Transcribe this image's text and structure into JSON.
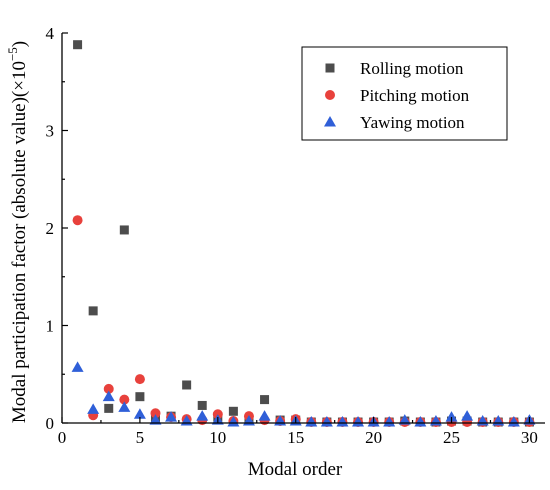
{
  "chart_data": {
    "type": "scatter",
    "xlabel": "Modal order",
    "ylabel": "Modal participation factor (absolute value)(×10",
    "ylabel_sup": "−5",
    "ylabel_close": ")",
    "xlim": [
      0,
      31
    ],
    "ylim": [
      0,
      4
    ],
    "x_ticks": [
      0,
      5,
      10,
      15,
      20,
      25,
      30
    ],
    "y_ticks": [
      0,
      1,
      2,
      3,
      4
    ],
    "grid": false,
    "legend_position": "top-right",
    "series": [
      {
        "name": "Rolling motion",
        "marker": "square",
        "color": "#4d4d4d",
        "points": [
          [
            1,
            3.88
          ],
          [
            2,
            1.15
          ],
          [
            3,
            0.15
          ],
          [
            4,
            1.98
          ],
          [
            5,
            0.27
          ],
          [
            6,
            0.05
          ],
          [
            7,
            0.07
          ],
          [
            8,
            0.39
          ],
          [
            9,
            0.18
          ],
          [
            10,
            0.06
          ],
          [
            11,
            0.12
          ],
          [
            12,
            0.04
          ],
          [
            13,
            0.24
          ],
          [
            14,
            0.03
          ],
          [
            15,
            0.03
          ],
          [
            16,
            0.01
          ],
          [
            17,
            0.01
          ],
          [
            18,
            0.01
          ],
          [
            19,
            0.01
          ],
          [
            20,
            0.01
          ],
          [
            21,
            0.01
          ],
          [
            22,
            0.02
          ],
          [
            23,
            0.01
          ],
          [
            24,
            0.01
          ],
          [
            25,
            0.02
          ],
          [
            26,
            0.02
          ],
          [
            27,
            0.01
          ],
          [
            28,
            0.01
          ],
          [
            29,
            0.01
          ],
          [
            30,
            0.01
          ]
        ]
      },
      {
        "name": "Pitching motion",
        "marker": "circle",
        "color": "#e8413c",
        "points": [
          [
            1,
            2.08
          ],
          [
            2,
            0.08
          ],
          [
            3,
            0.35
          ],
          [
            4,
            0.24
          ],
          [
            5,
            0.45
          ],
          [
            6,
            0.1
          ],
          [
            7,
            0.06
          ],
          [
            8,
            0.04
          ],
          [
            9,
            0.03
          ],
          [
            10,
            0.09
          ],
          [
            11,
            0.02
          ],
          [
            12,
            0.07
          ],
          [
            13,
            0.03
          ],
          [
            14,
            0.02
          ],
          [
            15,
            0.04
          ],
          [
            16,
            0.01
          ],
          [
            17,
            0.01
          ],
          [
            18,
            0.01
          ],
          [
            19,
            0.01
          ],
          [
            20,
            0.01
          ],
          [
            21,
            0.01
          ],
          [
            22,
            0.01
          ],
          [
            23,
            0.01
          ],
          [
            24,
            0.01
          ],
          [
            25,
            0.01
          ],
          [
            26,
            0.01
          ],
          [
            27,
            0.01
          ],
          [
            28,
            0.01
          ],
          [
            29,
            0.01
          ],
          [
            30,
            0.01
          ]
        ]
      },
      {
        "name": "Yawing motion",
        "marker": "triangle",
        "color": "#2f5fd8",
        "points": [
          [
            1,
            0.57
          ],
          [
            2,
            0.14
          ],
          [
            3,
            0.27
          ],
          [
            4,
            0.16
          ],
          [
            5,
            0.09
          ],
          [
            6,
            0.03
          ],
          [
            7,
            0.06
          ],
          [
            8,
            0.02
          ],
          [
            9,
            0.07
          ],
          [
            10,
            0.03
          ],
          [
            11,
            0.01
          ],
          [
            12,
            0.02
          ],
          [
            13,
            0.07
          ],
          [
            14,
            0.02
          ],
          [
            15,
            0.02
          ],
          [
            16,
            0.01
          ],
          [
            17,
            0.01
          ],
          [
            18,
            0.01
          ],
          [
            19,
            0.01
          ],
          [
            20,
            0.01
          ],
          [
            21,
            0.01
          ],
          [
            22,
            0.03
          ],
          [
            23,
            0.01
          ],
          [
            24,
            0.02
          ],
          [
            25,
            0.06
          ],
          [
            26,
            0.07
          ],
          [
            27,
            0.02
          ],
          [
            28,
            0.02
          ],
          [
            29,
            0.01
          ],
          [
            30,
            0.03
          ]
        ]
      }
    ]
  }
}
